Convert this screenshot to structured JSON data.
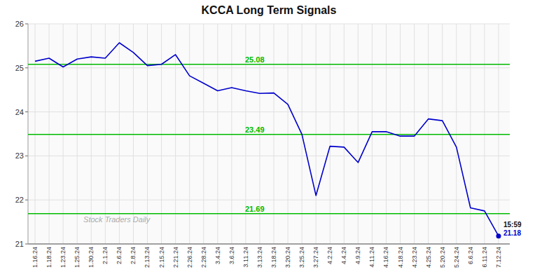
{
  "chart_data": {
    "type": "line",
    "title": "KCCA Long Term Signals",
    "categories": [
      "1.16.24",
      "1.18.24",
      "1.23.24",
      "1.25.24",
      "1.30.24",
      "2.1.24",
      "2.6.24",
      "2.8.24",
      "2.13.24",
      "2.15.24",
      "2.21.24",
      "2.26.24",
      "2.28.24",
      "3.4.24",
      "3.6.24",
      "3.11.24",
      "3.13.24",
      "3.18.24",
      "3.20.24",
      "3.25.24",
      "3.27.24",
      "4.2.24",
      "4.4.24",
      "4.9.24",
      "4.11.24",
      "4.16.24",
      "4.18.24",
      "4.23.24",
      "4.25.24",
      "5.20.24",
      "5.24.24",
      "6.6.24",
      "6.11.24",
      "7.12.24"
    ],
    "values": [
      25.15,
      25.22,
      25.02,
      25.2,
      25.25,
      25.22,
      25.57,
      25.35,
      25.05,
      25.08,
      25.3,
      24.82,
      24.65,
      24.48,
      24.55,
      24.48,
      24.42,
      24.43,
      24.17,
      23.49,
      22.1,
      23.22,
      23.2,
      22.85,
      23.55,
      23.55,
      23.45,
      23.45,
      23.84,
      23.8,
      23.2,
      21.82,
      21.75,
      21.18
    ],
    "color": "#0000cc",
    "marker": "last",
    "hlines": [
      {
        "value": 25.08,
        "label": "25.08",
        "color": "#00bb00"
      },
      {
        "value": 23.49,
        "label": "23.49",
        "color": "#00bb00"
      },
      {
        "value": 21.69,
        "label": "21.69",
        "color": "#00bb00"
      }
    ],
    "annotations": [
      "15:59",
      "21.18"
    ],
    "watermark": "Stock Traders Daily",
    "ylim": [
      21.0,
      26.0
    ],
    "yticks": [
      21,
      22,
      23,
      24,
      25,
      26
    ],
    "grid": true
  }
}
